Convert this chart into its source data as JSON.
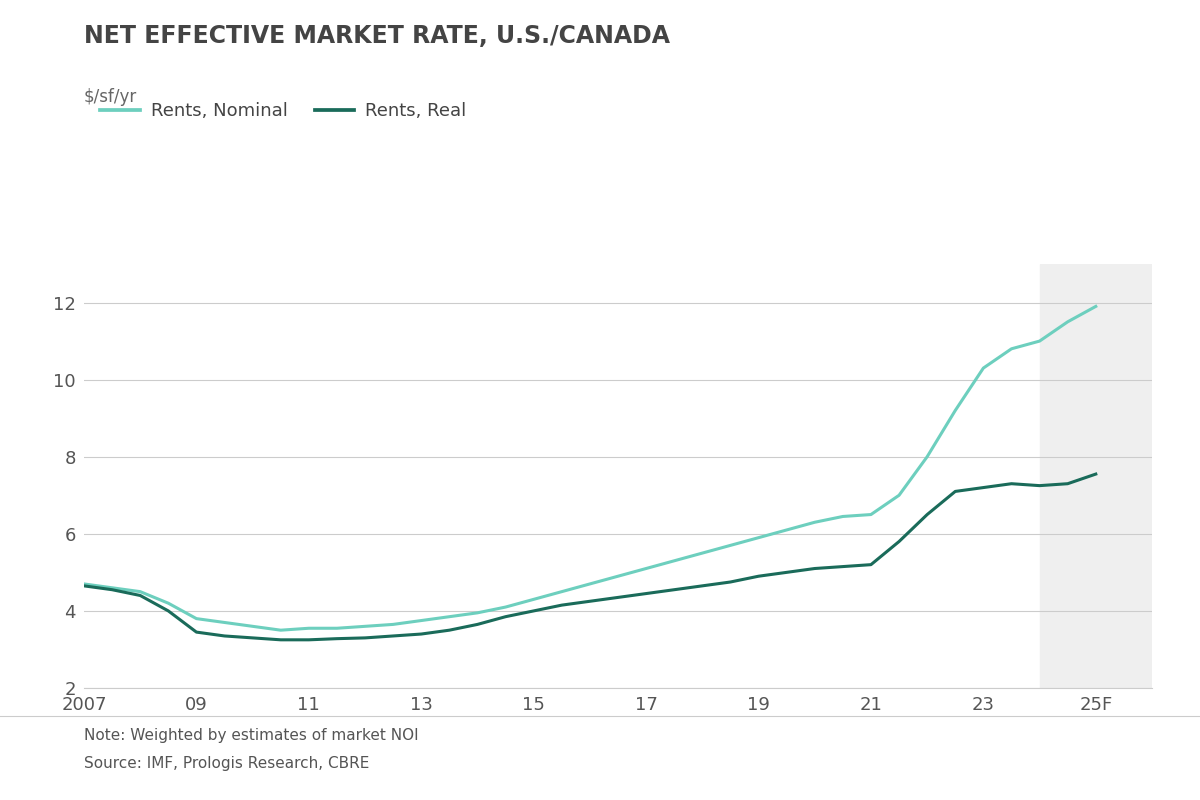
{
  "title": "NET EFFECTIVE MARKET RATE, U.S./CANADA",
  "subtitle": "$/sf/yr",
  "note": "Note: Weighted by estimates of market NOI",
  "source": "Source: IMF, Prologis Research, CBRE",
  "legend": [
    "Rents, Nominal",
    "Rents, Real"
  ],
  "color_nominal": "#6dcfbe",
  "color_real": "#1a6b5a",
  "background_color": "#ffffff",
  "shaded_region_color": "#efefef",
  "shaded_start": 2024,
  "shaded_end": 2026,
  "xlim_min": 2007,
  "xlim_max": 2026,
  "ylim": [
    2,
    13
  ],
  "yticks": [
    2,
    4,
    6,
    8,
    10,
    12
  ],
  "xtick_values": [
    2007,
    2009,
    2011,
    2013,
    2015,
    2017,
    2019,
    2021,
    2023,
    2025
  ],
  "xtick_labels": [
    "2007",
    "09",
    "11",
    "13",
    "15",
    "17",
    "19",
    "21",
    "23",
    "25F"
  ],
  "years_nominal": [
    2007,
    2007.5,
    2008,
    2008.5,
    2009,
    2009.5,
    2010,
    2010.5,
    2011,
    2011.5,
    2012,
    2012.5,
    2013,
    2013.5,
    2014,
    2014.5,
    2015,
    2015.5,
    2016,
    2016.5,
    2017,
    2017.5,
    2018,
    2018.5,
    2019,
    2019.5,
    2020,
    2020.5,
    2021,
    2021.5,
    2022,
    2022.5,
    2023,
    2023.5,
    2024,
    2024.5,
    2025
  ],
  "values_nominal": [
    4.7,
    4.6,
    4.5,
    4.2,
    3.8,
    3.7,
    3.6,
    3.5,
    3.55,
    3.55,
    3.6,
    3.65,
    3.75,
    3.85,
    3.95,
    4.1,
    4.3,
    4.5,
    4.7,
    4.9,
    5.1,
    5.3,
    5.5,
    5.7,
    5.9,
    6.1,
    6.3,
    6.45,
    6.5,
    7.0,
    8.0,
    9.2,
    10.3,
    10.8,
    11.0,
    11.5,
    11.9
  ],
  "years_real": [
    2007,
    2007.5,
    2008,
    2008.5,
    2009,
    2009.5,
    2010,
    2010.5,
    2011,
    2011.5,
    2012,
    2012.5,
    2013,
    2013.5,
    2014,
    2014.5,
    2015,
    2015.5,
    2016,
    2016.5,
    2017,
    2017.5,
    2018,
    2018.5,
    2019,
    2019.5,
    2020,
    2020.5,
    2021,
    2021.5,
    2022,
    2022.5,
    2023,
    2023.5,
    2024,
    2024.5,
    2025
  ],
  "values_real": [
    4.65,
    4.55,
    4.4,
    4.0,
    3.45,
    3.35,
    3.3,
    3.25,
    3.25,
    3.28,
    3.3,
    3.35,
    3.4,
    3.5,
    3.65,
    3.85,
    4.0,
    4.15,
    4.25,
    4.35,
    4.45,
    4.55,
    4.65,
    4.75,
    4.9,
    5.0,
    5.1,
    5.15,
    5.2,
    5.8,
    6.5,
    7.1,
    7.2,
    7.3,
    7.25,
    7.3,
    7.55
  ],
  "line_width": 2.2,
  "title_fontsize": 17,
  "subtitle_fontsize": 12,
  "tick_fontsize": 13,
  "legend_fontsize": 13,
  "note_fontsize": 11
}
